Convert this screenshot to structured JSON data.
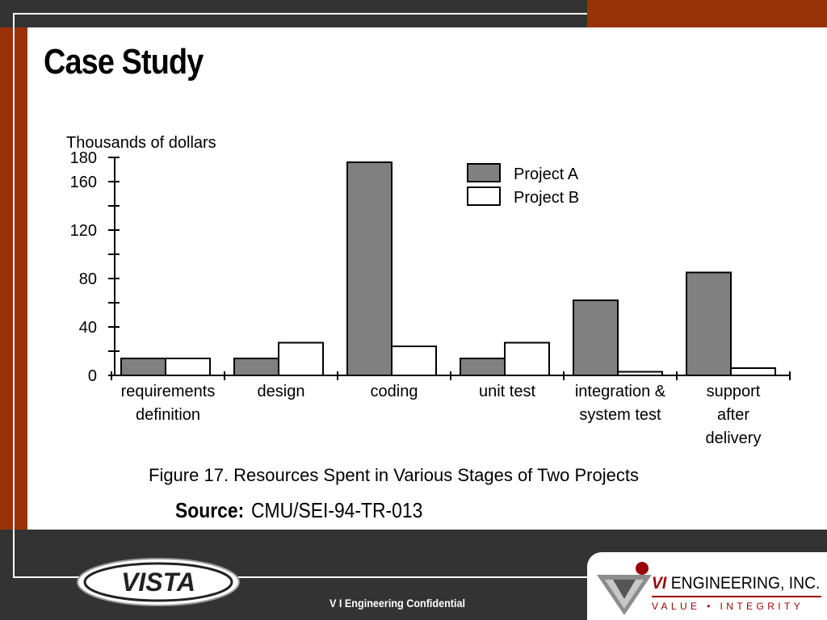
{
  "slide": {
    "title": "Case Study",
    "source_label": "Source:",
    "source_text": "CMU/SEI-94-TR-013",
    "footer_text": "V I Engineering Confidential",
    "vista_logo_text": "VISTA",
    "vi_logo": {
      "name_strong": "VI",
      "name_rest": "ENGINEERING, INC.",
      "tagline": "VALUE • INTEGRITY"
    }
  },
  "colors": {
    "accent": "#9a3208",
    "dark_bar": "#333333",
    "project_a": "#808080",
    "project_b": "#ffffff"
  },
  "chart_data": {
    "type": "bar",
    "ylabel": "Thousands of dollars",
    "caption": "Figure 17.  Resources Spent in Various Stages of Two Projects",
    "categories": [
      [
        "requirements",
        "definition"
      ],
      [
        "design"
      ],
      [
        "coding"
      ],
      [
        "unit test"
      ],
      [
        "integration &",
        "system test"
      ],
      [
        "support",
        "after",
        "delivery"
      ]
    ],
    "series": [
      {
        "name": "Project A",
        "color": "#808080",
        "values": [
          14,
          14,
          176,
          14,
          62,
          85
        ]
      },
      {
        "name": "Project B",
        "color": "#ffffff",
        "values": [
          14,
          27,
          24,
          27,
          3,
          6
        ]
      }
    ],
    "yticks": [
      0,
      40,
      80,
      120,
      160,
      180
    ],
    "ylim": [
      0,
      180
    ],
    "legend_position": "top-right",
    "grid": false
  }
}
